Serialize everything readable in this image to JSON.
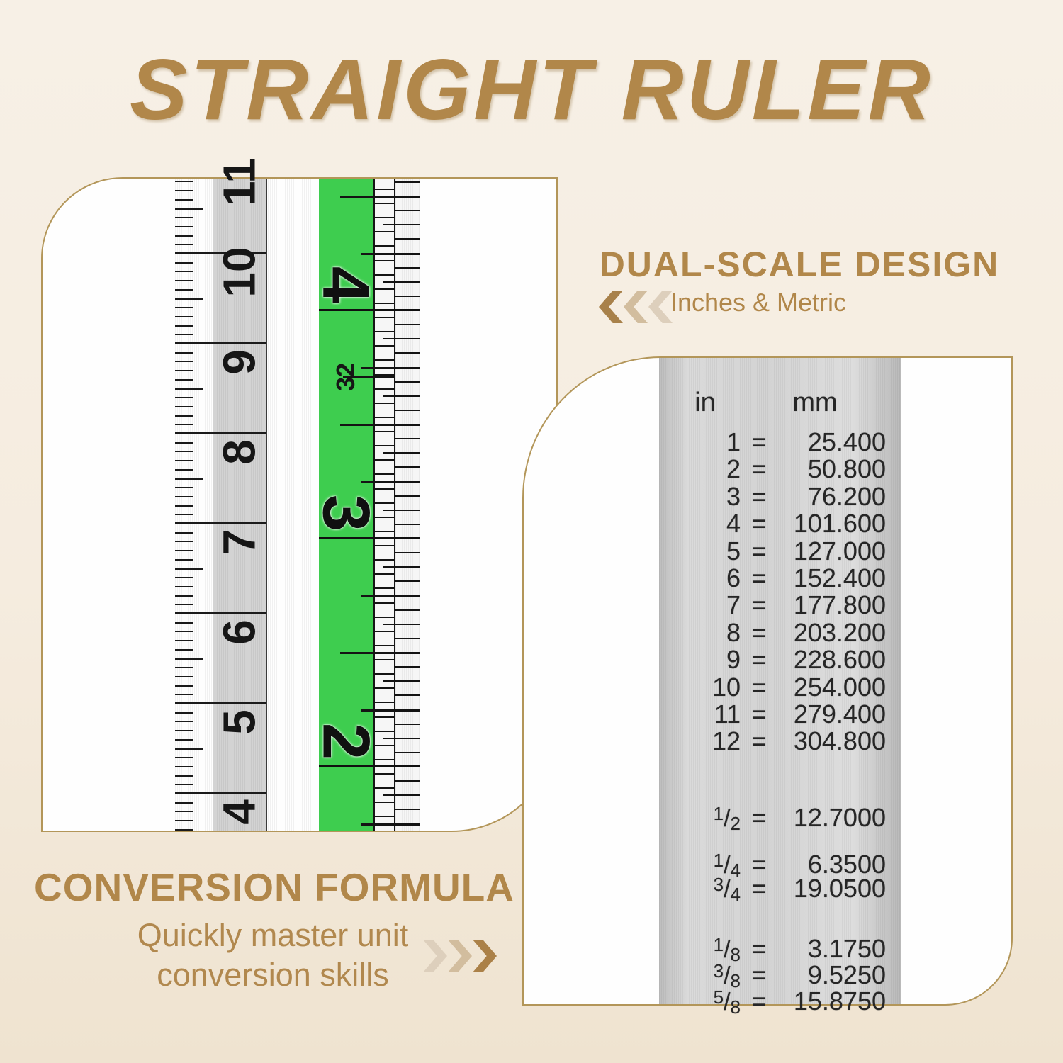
{
  "title": "STRAIGHT RULER",
  "colors": {
    "background": "#f5ecdf",
    "accent_gold": "#b1874a",
    "panel_border_gold": "#b39659",
    "ruler_green": "#3ecd4f",
    "chevron_dark": "#a8814a",
    "chevron_mid": "#d2bd9e",
    "chevron_light": "#ddcfbc"
  },
  "dual_scale": {
    "heading": "DUAL-SCALE DESIGN",
    "subheading": "Inches & Metric",
    "chevron_direction": "left"
  },
  "conversion_formula": {
    "heading": "CONVERSION FORMULA",
    "line1": "Quickly master unit",
    "line2": "conversion skills",
    "chevron_direction": "right"
  },
  "ruler_closeup": {
    "metric_labels": [
      "11",
      "10",
      "9",
      "8",
      "7",
      "6",
      "5",
      "4"
    ],
    "inch_labels": [
      "4",
      "3",
      "2"
    ],
    "scale_marker": "32"
  },
  "conversion_table": {
    "col_in": "in",
    "col_mm": "mm",
    "integer_rows": [
      [
        "1",
        "25.400"
      ],
      [
        "2",
        "50.800"
      ],
      [
        "3",
        "76.200"
      ],
      [
        "4",
        "101.600"
      ],
      [
        "5",
        "127.000"
      ],
      [
        "6",
        "152.400"
      ],
      [
        "7",
        "177.800"
      ],
      [
        "8",
        "203.200"
      ],
      [
        "9",
        "228.600"
      ],
      [
        "10",
        "254.000"
      ],
      [
        "11",
        "279.400"
      ],
      [
        "12",
        "304.800"
      ]
    ],
    "fraction_rows": [
      [
        "1/2",
        "12.7000"
      ],
      [
        "1/4",
        "6.3500"
      ],
      [
        "3/4",
        "19.0500"
      ],
      [
        "1/8",
        "3.1750"
      ],
      [
        "3/8",
        "9.5250"
      ],
      [
        "5/8",
        "15.8750"
      ]
    ]
  }
}
